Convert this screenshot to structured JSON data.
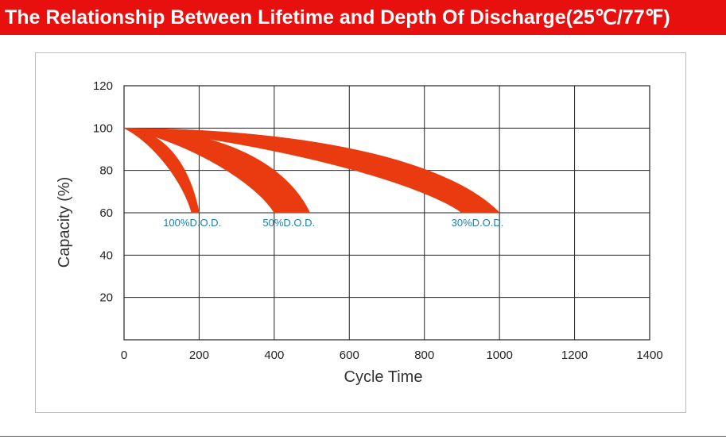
{
  "chart_data": {
    "type": "area",
    "title": "The Relationship Between Lifetime and Depth Of Discharge(25℃/77℉)",
    "xlabel": "Cycle Time",
    "ylabel": "Capacity (%)",
    "xlim": [
      0,
      1400
    ],
    "ylim": [
      0,
      120
    ],
    "xticks": [
      "0",
      "200",
      "400",
      "600",
      "800",
      "1000",
      "1200",
      "1400"
    ],
    "yticks": [
      "20",
      "40",
      "60",
      "80",
      "100",
      "120"
    ],
    "grid": true,
    "series": [
      {
        "name": "100%D.O.D.",
        "color": "#ea3a10",
        "start": [
          0,
          100
        ],
        "end_range": [
          180,
          200
        ],
        "end_capacity": 60
      },
      {
        "name": "50%D.O.D.",
        "color": "#ea3a10",
        "start": [
          0,
          100
        ],
        "end_range": [
          400,
          495
        ],
        "end_capacity": 60
      },
      {
        "name": "30%D.O.D.",
        "color": "#ea3a10",
        "start": [
          0,
          100
        ],
        "end_range": [
          900,
          1000
        ],
        "end_capacity": 60
      }
    ]
  }
}
